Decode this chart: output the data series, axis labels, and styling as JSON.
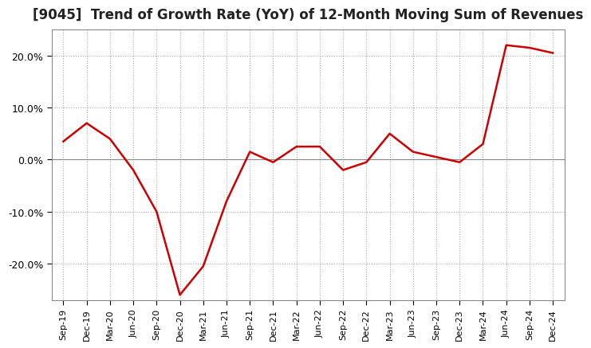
{
  "title": "[9045]  Trend of Growth Rate (YoY) of 12-Month Moving Sum of Revenues",
  "title_fontsize": 12,
  "line_color": "#cc0000",
  "line_width": 1.8,
  "background_color": "#ffffff",
  "plot_bg_color": "#ffffff",
  "grid_color": "#aaaaaa",
  "zero_line_color": "#888888",
  "ylim": [
    -27,
    25
  ],
  "yticks": [
    -20,
    -10,
    0,
    10,
    20
  ],
  "x_labels": [
    "Sep-19",
    "Dec-19",
    "Mar-20",
    "Jun-20",
    "Sep-20",
    "Dec-20",
    "Mar-21",
    "Jun-21",
    "Sep-21",
    "Dec-21",
    "Mar-22",
    "Jun-22",
    "Sep-22",
    "Dec-22",
    "Mar-23",
    "Jun-23",
    "Sep-23",
    "Dec-23",
    "Mar-24",
    "Jun-24",
    "Sep-24",
    "Dec-24"
  ],
  "x_values": [
    0,
    1,
    2,
    3,
    4,
    5,
    6,
    7,
    8,
    9,
    10,
    11,
    12,
    13,
    14,
    15,
    16,
    17,
    18,
    19,
    20,
    21
  ],
  "y_values": [
    3.5,
    7.0,
    4.0,
    -2.0,
    -10.0,
    -26.0,
    -20.5,
    -8.0,
    1.5,
    -0.5,
    2.5,
    2.5,
    -2.0,
    -0.5,
    5.0,
    1.5,
    0.5,
    -0.5,
    3.0,
    22.0,
    21.5,
    20.5
  ]
}
